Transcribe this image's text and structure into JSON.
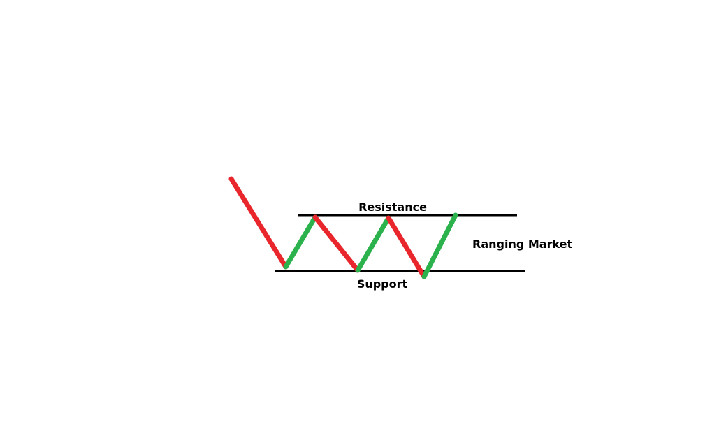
{
  "labels": {
    "resistance": "Resistance",
    "support": "Support",
    "ranging_market": "Ranging Market"
  },
  "colors": {
    "down_move": "#e8262c",
    "up_move": "#2bb24c",
    "level_line": "#000000",
    "background": "#ffffff"
  },
  "price_path": [
    {
      "name": "down-leg-1",
      "direction": "down"
    },
    {
      "name": "up-leg-1",
      "direction": "up"
    },
    {
      "name": "down-leg-2",
      "direction": "down"
    },
    {
      "name": "up-leg-2",
      "direction": "up"
    },
    {
      "name": "down-leg-3",
      "direction": "down"
    },
    {
      "name": "up-leg-3",
      "direction": "up"
    }
  ]
}
